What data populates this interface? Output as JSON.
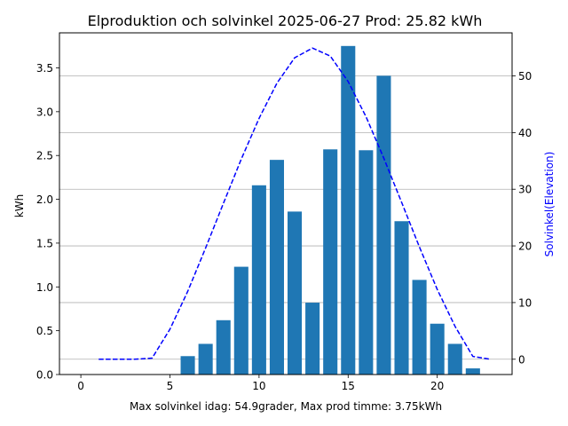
{
  "chart_data": {
    "type": "bar",
    "title": "Elproduktion och solvinkel 2025-06-27 Prod: 25.82 kWh",
    "xlabel": "Max solvinkel idag: 54.9grader, Max prod timme: 3.75kWh",
    "ylabel": "kWh",
    "y2label": "Solvinkel(Elevation)",
    "xlim": [
      -1.2,
      24.2
    ],
    "ylim": [
      0,
      3.9
    ],
    "y2lim": [
      -2.7,
      57.6
    ],
    "xticks": [
      0,
      5,
      10,
      15,
      20
    ],
    "yticks": [
      0.0,
      0.5,
      1.0,
      1.5,
      2.0,
      2.5,
      3.0,
      3.5
    ],
    "y2ticks": [
      0,
      10,
      20,
      30,
      40,
      50
    ],
    "ytick_labels": [
      "0.0",
      "0.5",
      "1.0",
      "1.5",
      "2.0",
      "2.5",
      "3.0",
      "3.5"
    ],
    "xtick_labels": [
      "0",
      "5",
      "10",
      "15",
      "20"
    ],
    "y2tick_labels": [
      "0",
      "10",
      "20",
      "30",
      "40",
      "50"
    ],
    "grid": "horizontal lines at right-axis ticks",
    "bars": {
      "name": "Elproduktion",
      "color": "#1f77b4",
      "x": [
        6,
        7,
        8,
        9,
        10,
        11,
        12,
        13,
        14,
        15,
        16,
        17,
        18,
        19,
        20,
        21,
        22
      ],
      "values": [
        0.21,
        0.35,
        0.62,
        1.23,
        2.16,
        2.45,
        1.86,
        0.82,
        2.57,
        3.75,
        2.56,
        3.41,
        1.75,
        1.08,
        0.58,
        0.35,
        0.07
      ]
    },
    "line": {
      "name": "Solvinkel",
      "color": "#0000ff",
      "style": "dashed",
      "axis": "right",
      "x": [
        1,
        2,
        3,
        4,
        5,
        6,
        7,
        8,
        9,
        10,
        11,
        12,
        13,
        14,
        15,
        16,
        17,
        18,
        19,
        20,
        21,
        22,
        23
      ],
      "values": [
        0,
        0,
        0,
        0.2,
        5.3,
        12.0,
        19.6,
        27.5,
        35.3,
        42.5,
        48.7,
        53.2,
        54.9,
        53.5,
        49.0,
        42.8,
        35.5,
        27.7,
        19.8,
        12.3,
        5.8,
        0.5,
        0
      ]
    }
  },
  "colors": {
    "bar": "#1f77b4",
    "line": "#0000ff",
    "grid": "#b0b0b0",
    "right_axis_label": "#0000ff"
  }
}
